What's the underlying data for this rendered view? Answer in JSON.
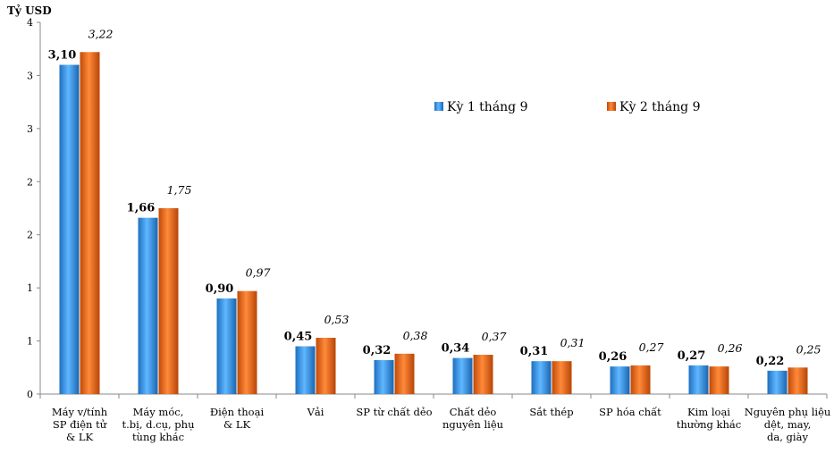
{
  "chart_data": {
    "type": "bar",
    "ylabel": "Tỷ USD",
    "y_tick_labels": [
      "0",
      "1",
      "1",
      "2",
      "2",
      "3",
      "3",
      "4"
    ],
    "ylim": [
      0,
      3.5
    ],
    "categories": [
      [
        "Máy v/tính",
        "SP điện tử",
        "& LK"
      ],
      [
        "Máy móc,",
        "t.bị, d.cụ, phụ",
        "tùng khác"
      ],
      [
        "Điện thoại",
        "& LK"
      ],
      [
        "Vải"
      ],
      [
        "SP từ chất dẻo"
      ],
      [
        "Chất dẻo",
        "nguyên liệu"
      ],
      [
        "Sắt thép"
      ],
      [
        "SP hóa chất"
      ],
      [
        "Kim loại",
        "thường khác"
      ],
      [
        "Nguyên phụ liệu",
        "dệt, may,",
        "da, giày"
      ]
    ],
    "series": [
      {
        "name": "Kỳ 1 tháng 9",
        "color": "#3399ee",
        "values": [
          3.1,
          1.66,
          0.9,
          0.45,
          0.32,
          0.34,
          0.31,
          0.26,
          0.27,
          0.22
        ],
        "labels": [
          "3,10",
          "1,66",
          "0,90",
          "0,45",
          "0,32",
          "0,34",
          "0,31",
          "0,26",
          "0,27",
          "0,22"
        ]
      },
      {
        "name": "Kỳ 2 tháng 9",
        "color": "#ee6611",
        "values": [
          3.22,
          1.75,
          0.97,
          0.53,
          0.38,
          0.37,
          0.31,
          0.27,
          0.26,
          0.25
        ],
        "labels": [
          "3,22",
          "1,75",
          "0,97",
          "0,53",
          "0,38",
          "0,37",
          "0,31",
          "0,27",
          "0,26",
          "0,25"
        ]
      }
    ],
    "legend_position": "top-right",
    "grid": false
  }
}
